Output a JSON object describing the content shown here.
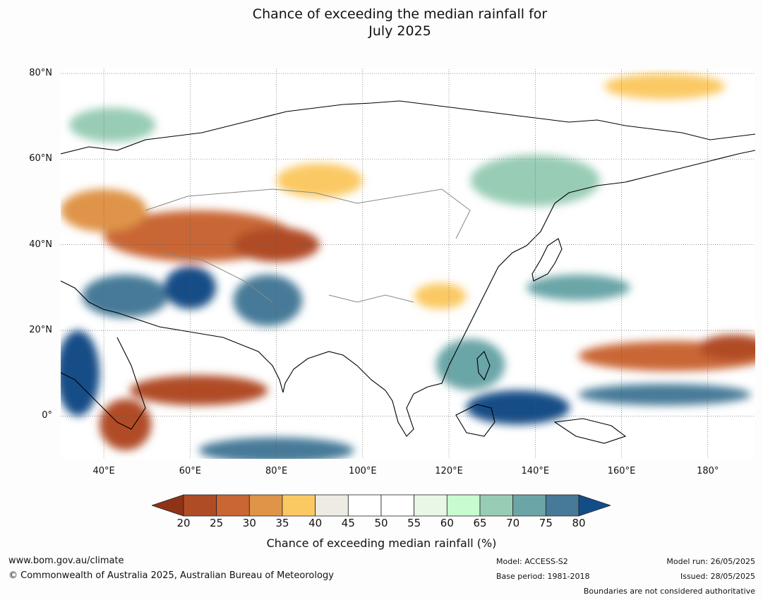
{
  "title_line1": "Chance of exceeding the median rainfall for",
  "title_line2": "July 2025",
  "chart_data": {
    "type": "heatmap",
    "title": "Chance of exceeding the median rainfall for July 2025",
    "x_extent": [
      30,
      191
    ],
    "y_extent": [
      -10,
      81
    ],
    "lat_ticks": [
      "80°N",
      "60°N",
      "40°N",
      "20°N",
      "0°"
    ],
    "lat_values": [
      80,
      60,
      40,
      20,
      0
    ],
    "lon_ticks": [
      "40°E",
      "60°E",
      "80°E",
      "100°E",
      "120°E",
      "140°E",
      "160°E",
      "180°"
    ],
    "lon_values": [
      40,
      60,
      80,
      100,
      120,
      140,
      160,
      180
    ],
    "grid": true,
    "colorbar": {
      "label": "Chance of exceeding median rainfall (%)",
      "ticks": [
        "20",
        "25",
        "30",
        "35",
        "40",
        "45",
        "50",
        "55",
        "60",
        "65",
        "70",
        "75",
        "80"
      ],
      "colors": [
        "#8e3318",
        "#b04c25",
        "#c96634",
        "#df9448",
        "#fbc964",
        "#eeebe5",
        "#ffffff",
        "#ffffff",
        "#e8f7e6",
        "#c7fcce",
        "#98ccb5",
        "#6ba5a7",
        "#477a98",
        "#124d87"
      ]
    },
    "regions": [
      {
        "name": "dry-westasia-1",
        "pct": 25,
        "lon": 62,
        "lat": 42,
        "rx": 22,
        "ry": 6
      },
      {
        "name": "dry-westasia-2",
        "pct": 20,
        "lon": 80,
        "lat": 40,
        "rx": 10,
        "ry": 4
      },
      {
        "name": "dry-europe",
        "pct": 30,
        "lon": 40,
        "lat": 48,
        "rx": 10,
        "ry": 5
      },
      {
        "name": "dry-arabiansea",
        "pct": 20,
        "lon": 62,
        "lat": 6,
        "rx": 16,
        "ry": 3.5
      },
      {
        "name": "dry-somalia",
        "pct": 20,
        "lon": 45,
        "lat": -2,
        "rx": 6,
        "ry": 6
      },
      {
        "name": "dry-pacific",
        "pct": 25,
        "lon": 172,
        "lat": 14,
        "rx": 22,
        "ry": 3.5
      },
      {
        "name": "dry-pacific-east",
        "pct": 20,
        "lon": 186,
        "lat": 16,
        "rx": 8,
        "ry": 3
      },
      {
        "name": "dry-china",
        "pct": 35,
        "lon": 118,
        "lat": 28,
        "rx": 6,
        "ry": 3
      },
      {
        "name": "dry-siberia",
        "pct": 35,
        "lon": 170,
        "lat": 77,
        "rx": 14,
        "ry": 3
      },
      {
        "name": "dry-kazakh",
        "pct": 35,
        "lon": 90,
        "lat": 55,
        "rx": 10,
        "ry": 4
      },
      {
        "name": "wet-arabia",
        "pct": 75,
        "lon": 45,
        "lat": 28,
        "rx": 10,
        "ry": 5
      },
      {
        "name": "wet-iran",
        "pct": 80,
        "lon": 60,
        "lat": 30,
        "rx": 6,
        "ry": 5
      },
      {
        "name": "wet-india",
        "pct": 75,
        "lon": 78,
        "lat": 27,
        "rx": 8,
        "ry": 6
      },
      {
        "name": "wet-africa",
        "pct": 80,
        "lon": 34,
        "lat": 10,
        "rx": 5,
        "ry": 10
      },
      {
        "name": "wet-maritime",
        "pct": 80,
        "lon": 136,
        "lat": 2,
        "rx": 12,
        "ry": 4
      },
      {
        "name": "wet-sea",
        "pct": 70,
        "lon": 125,
        "lat": 12,
        "rx": 8,
        "ry": 6
      },
      {
        "name": "wet-southindian",
        "pct": 75,
        "lon": 80,
        "lat": -8,
        "rx": 18,
        "ry": 3
      },
      {
        "name": "wet-pacific-band",
        "pct": 75,
        "lon": 170,
        "lat": 5,
        "rx": 20,
        "ry": 2.5
      },
      {
        "name": "wet-westpac",
        "pct": 70,
        "lon": 150,
        "lat": 30,
        "rx": 12,
        "ry": 3
      },
      {
        "name": "wet-northasia",
        "pct": 65,
        "lon": 140,
        "lat": 55,
        "rx": 15,
        "ry": 6
      },
      {
        "name": "wet-europe",
        "pct": 65,
        "lon": 42,
        "lat": 68,
        "rx": 10,
        "ry": 4
      }
    ]
  },
  "footer": {
    "url": "www.bom.gov.au/climate",
    "copyright": "© Commonwealth of Australia 2025, Australian Bureau of Meteorology",
    "model": "Model: ACCESS-S2",
    "base_period": "Base period: 1981-2018",
    "model_run": "Model run: 26/05/2025",
    "issued": "Issued: 28/05/2025",
    "disclaimer": "Boundaries are not considered authoritative"
  }
}
